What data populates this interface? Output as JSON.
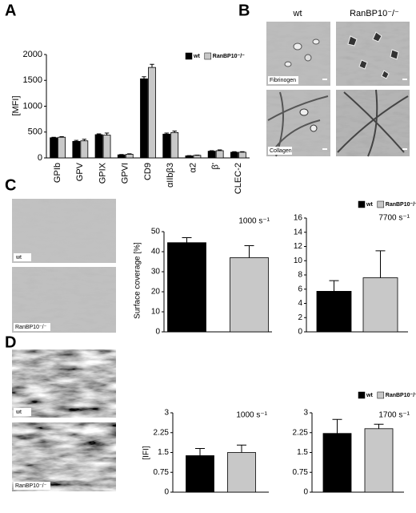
{
  "panels": [
    "A",
    "B",
    "C",
    "D"
  ],
  "images": {
    "B": {
      "columns": [
        "wt",
        "RanBP10⁻/⁻"
      ],
      "rows": [
        "Fibrinogen",
        "Collagen"
      ]
    },
    "C": {
      "labels": [
        "wt",
        "RanBP10⁻/⁻"
      ]
    },
    "D": {
      "labels": [
        "wt",
        "RanBP10⁻/⁻"
      ]
    }
  },
  "chart_data": [
    {
      "type": "bar",
      "ylabel": "[MFI]",
      "legend": true,
      "categories": [
        "GPIb",
        "GPV",
        "GPIX",
        "GPVI",
        "CD9",
        "αIIbβ3",
        "α2",
        "β'",
        "CLEC-2"
      ],
      "series": [
        {
          "name": "wt",
          "color": "#000000",
          "values": [
            390,
            320,
            450,
            60,
            1530,
            460,
            40,
            130,
            110
          ],
          "errors": [
            10,
            20,
            15,
            5,
            40,
            20,
            5,
            10,
            10
          ]
        },
        {
          "name": "RanBP10⁻/⁻",
          "color": "#c8c8c8",
          "values": [
            400,
            330,
            440,
            70,
            1750,
            490,
            50,
            140,
            110
          ],
          "errors": [
            10,
            30,
            40,
            10,
            60,
            30,
            5,
            15,
            10
          ]
        }
      ],
      "ylim": [
        0,
        2000
      ],
      "yticks": [
        0,
        500,
        1000,
        1500,
        2000
      ]
    },
    {
      "type": "bar",
      "ylabel": "Surface coverage [%]",
      "annotation": "1000 s⁻¹",
      "legend": false,
      "categories": [
        null
      ],
      "series": [
        {
          "name": "wt",
          "color": "#000000",
          "values": [
            44.5
          ],
          "errors": [
            2.5
          ]
        },
        {
          "name": "RanBP10⁻/⁻",
          "color": "#c8c8c8",
          "values": [
            37
          ],
          "errors": [
            6
          ]
        }
      ],
      "ylim": [
        0,
        50
      ],
      "yticks": [
        0,
        10,
        20,
        30,
        40,
        50
      ]
    },
    {
      "type": "bar",
      "annotation": "7700 s⁻¹",
      "legend": true,
      "categories": [
        null
      ],
      "series": [
        {
          "name": "wt",
          "color": "#000000",
          "values": [
            5.7
          ],
          "errors": [
            1.5
          ]
        },
        {
          "name": "RanBP10⁻/⁻",
          "color": "#c8c8c8",
          "values": [
            7.6
          ],
          "errors": [
            3.8
          ]
        }
      ],
      "ylim": [
        0,
        16
      ],
      "yticks": [
        0,
        2,
        4,
        6,
        8,
        10,
        12,
        14,
        16
      ]
    },
    {
      "type": "bar",
      "ylabel": "[IFI]",
      "annotation": "1000 s⁻¹",
      "legend": false,
      "categories": [
        null
      ],
      "series": [
        {
          "name": "wt",
          "color": "#000000",
          "values": [
            1.38
          ],
          "errors": [
            0.27
          ]
        },
        {
          "name": "RanBP10⁻/⁻",
          "color": "#c8c8c8",
          "values": [
            1.5
          ],
          "errors": [
            0.28
          ]
        }
      ],
      "ylim": [
        0,
        3
      ],
      "yticks": [
        0,
        0.75,
        1.5,
        2.25,
        3
      ]
    },
    {
      "type": "bar",
      "annotation": "1700 s⁻¹",
      "legend": true,
      "categories": [
        null
      ],
      "series": [
        {
          "name": "wt",
          "color": "#000000",
          "values": [
            2.22
          ],
          "errors": [
            0.53
          ]
        },
        {
          "name": "RanBP10⁻/⁻",
          "color": "#c8c8c8",
          "values": [
            2.4
          ],
          "errors": [
            0.17
          ]
        }
      ],
      "ylim": [
        0,
        3
      ],
      "yticks": [
        0,
        0.75,
        1.5,
        2.25,
        3
      ]
    }
  ]
}
